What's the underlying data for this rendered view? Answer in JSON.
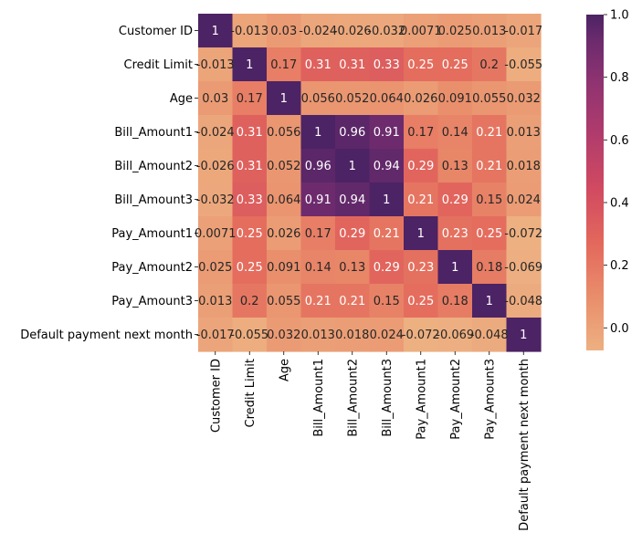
{
  "chart_data": {
    "type": "heatmap",
    "title": "",
    "xlabel": "",
    "ylabel": "",
    "colormap": "flare",
    "colorscale_range": [
      -0.072,
      1.0
    ],
    "rows": [
      "Customer ID",
      "Credit Limit",
      "Age",
      "Bill_Amount1",
      "Bill_Amount2",
      "Bill_Amount3",
      "Pay_Amount1",
      "Pay_Amount2",
      "Pay_Amount3",
      "Default payment next month"
    ],
    "columns": [
      "Customer ID",
      "Credit Limit",
      "Age",
      "Bill_Amount1",
      "Bill_Amount2",
      "Bill_Amount3",
      "Pay_Amount1",
      "Pay_Amount2",
      "Pay_Amount3",
      "Default payment next month"
    ],
    "values": [
      [
        1,
        -0.013,
        0.03,
        -0.024,
        -0.026,
        -0.032,
        0.0071,
        0.025,
        0.013,
        -0.017
      ],
      [
        -0.013,
        1,
        0.17,
        0.31,
        0.31,
        0.33,
        0.25,
        0.25,
        0.2,
        -0.055
      ],
      [
        0.03,
        0.17,
        1,
        0.056,
        0.052,
        0.064,
        0.026,
        0.091,
        0.055,
        0.032
      ],
      [
        -0.024,
        0.31,
        0.056,
        1,
        0.96,
        0.91,
        0.17,
        0.14,
        0.21,
        0.013
      ],
      [
        -0.026,
        0.31,
        0.052,
        0.96,
        1,
        0.94,
        0.29,
        0.13,
        0.21,
        0.018
      ],
      [
        -0.032,
        0.33,
        0.064,
        0.91,
        0.94,
        1,
        0.21,
        0.29,
        0.15,
        0.024
      ],
      [
        0.0071,
        0.25,
        0.026,
        0.17,
        0.29,
        0.21,
        1,
        0.23,
        0.25,
        -0.072
      ],
      [
        0.025,
        0.25,
        0.091,
        0.14,
        0.13,
        0.29,
        0.23,
        1,
        0.18,
        -0.069
      ],
      [
        0.013,
        0.2,
        0.055,
        0.21,
        0.21,
        0.15,
        0.25,
        0.18,
        1,
        -0.048
      ],
      [
        -0.017,
        -0.055,
        0.032,
        0.013,
        0.018,
        0.024,
        -0.072,
        -0.069,
        -0.048,
        1
      ]
    ],
    "annotations": [
      [
        "1",
        "-0.013",
        "0.03",
        "-0.024",
        "-0.026",
        "-0.032",
        "0.0071",
        "0.025",
        "0.013",
        "-0.017"
      ],
      [
        "-0.013",
        "1",
        "0.17",
        "0.31",
        "0.31",
        "0.33",
        "0.25",
        "0.25",
        "0.2",
        "-0.055"
      ],
      [
        "0.03",
        "0.17",
        "1",
        "0.056",
        "0.052",
        "0.064",
        "0.026",
        "0.091",
        "0.055",
        "0.032"
      ],
      [
        "-0.024",
        "0.31",
        "0.056",
        "1",
        "0.96",
        "0.91",
        "0.17",
        "0.14",
        "0.21",
        "0.013"
      ],
      [
        "-0.026",
        "0.31",
        "0.052",
        "0.96",
        "1",
        "0.94",
        "0.29",
        "0.13",
        "0.21",
        "0.018"
      ],
      [
        "-0.032",
        "0.33",
        "0.064",
        "0.91",
        "0.94",
        "1",
        "0.21",
        "0.29",
        "0.15",
        "0.024"
      ],
      [
        "0.0071",
        "0.25",
        "0.026",
        "0.17",
        "0.29",
        "0.21",
        "1",
        "0.23",
        "0.25",
        "-0.072"
      ],
      [
        "0.025",
        "0.25",
        "0.091",
        "0.14",
        "0.13",
        "0.29",
        "0.23",
        "1",
        "0.18",
        "-0.069"
      ],
      [
        "0.013",
        "0.2",
        "0.055",
        "0.21",
        "0.21",
        "0.15",
        "0.25",
        "0.18",
        "1",
        "-0.048"
      ],
      [
        "-0.017",
        "-0.055",
        "0.032",
        "0.013",
        "0.018",
        "0.024",
        "-0.072",
        "-0.069",
        "-0.048",
        "1"
      ]
    ],
    "colorbar": {
      "ticks": [
        0.0,
        0.2,
        0.4,
        0.6,
        0.8,
        1.0
      ],
      "tick_labels": [
        "0.0",
        "0.2",
        "0.4",
        "0.6",
        "0.8",
        "1.0"
      ],
      "location": "right"
    },
    "colors": {
      "low": "#edb081",
      "mid_low": "#e98d6b",
      "mid": "#e3685c",
      "mid_high": "#d14a61",
      "high_mid": "#b13c6c",
      "high": "#8f3371",
      "top": "#6c2b6d",
      "max": "#4c2364"
    }
  }
}
